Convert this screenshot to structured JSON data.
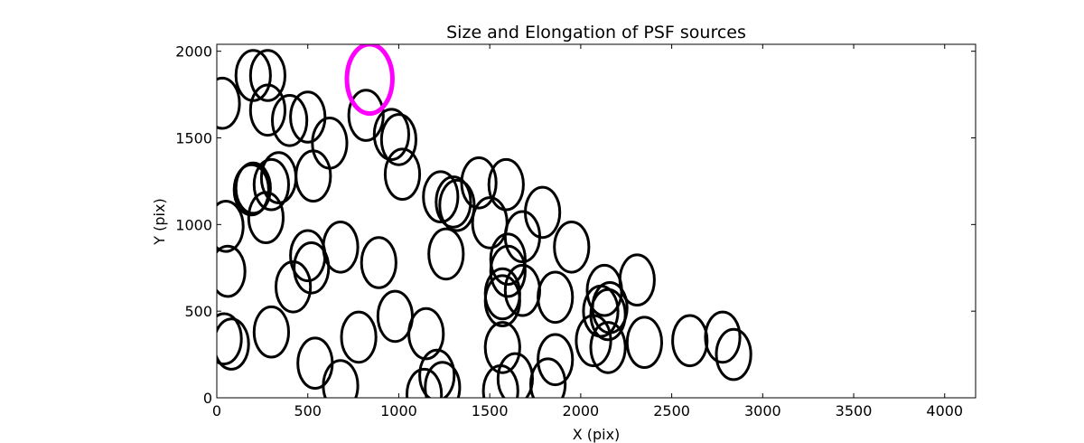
{
  "chart_data": {
    "type": "scatter",
    "title": "Size and Elongation of PSF sources",
    "xlabel": "X (pix)",
    "ylabel": "Y (pix)",
    "xlim": [
      0,
      4170
    ],
    "ylim": [
      0,
      2040
    ],
    "x_ticks": [
      0,
      500,
      1000,
      1500,
      2000,
      2500,
      3000,
      3500,
      4000
    ],
    "y_ticks": [
      0,
      500,
      1000,
      1500,
      2000
    ],
    "x_tick_labels": [
      "0",
      "500",
      "1000",
      "1500",
      "2000",
      "2500",
      "3000",
      "3500",
      "4000"
    ],
    "y_tick_labels": [
      "0",
      "500",
      "1000",
      "1500",
      "2000"
    ],
    "grid": false,
    "marker": "open ellipse",
    "colors": {
      "sources": "#000000",
      "reference": "#ff00ff"
    },
    "series": [
      {
        "points": [
          [
            30,
            1700
          ],
          [
            200,
            1860
          ],
          [
            280,
            1860
          ],
          [
            280,
            1660
          ],
          [
            400,
            1600
          ],
          [
            500,
            1620
          ],
          [
            620,
            1470
          ],
          [
            820,
            1630
          ],
          [
            960,
            1520
          ],
          [
            1000,
            1490
          ],
          [
            1020,
            1290
          ],
          [
            200,
            1210
          ],
          [
            190,
            1200
          ],
          [
            340,
            1270
          ],
          [
            300,
            1230
          ],
          [
            530,
            1280
          ],
          [
            50,
            990
          ],
          [
            270,
            1040
          ],
          [
            1230,
            1160
          ],
          [
            1300,
            1130
          ],
          [
            1320,
            1110
          ],
          [
            1440,
            1240
          ],
          [
            1590,
            1230
          ],
          [
            1500,
            1010
          ],
          [
            1680,
            930
          ],
          [
            1790,
            1070
          ],
          [
            1950,
            870
          ],
          [
            60,
            730
          ],
          [
            500,
            820
          ],
          [
            520,
            750
          ],
          [
            680,
            870
          ],
          [
            890,
            780
          ],
          [
            420,
            640
          ],
          [
            1260,
            830
          ],
          [
            1600,
            800
          ],
          [
            1600,
            730
          ],
          [
            1570,
            600
          ],
          [
            1570,
            560
          ],
          [
            1680,
            620
          ],
          [
            1860,
            580
          ],
          [
            2130,
            620
          ],
          [
            2110,
            500
          ],
          [
            2150,
            480
          ],
          [
            2160,
            520
          ],
          [
            2310,
            680
          ],
          [
            40,
            340
          ],
          [
            80,
            310
          ],
          [
            300,
            380
          ],
          [
            780,
            350
          ],
          [
            980,
            470
          ],
          [
            1150,
            370
          ],
          [
            540,
            200
          ],
          [
            680,
            70
          ],
          [
            1210,
            130
          ],
          [
            1140,
            20
          ],
          [
            1240,
            60
          ],
          [
            1560,
            40
          ],
          [
            1570,
            290
          ],
          [
            1640,
            110
          ],
          [
            1820,
            80
          ],
          [
            1860,
            220
          ],
          [
            2070,
            330
          ],
          [
            2150,
            290
          ],
          [
            2350,
            320
          ],
          [
            2600,
            330
          ],
          [
            2780,
            350
          ],
          [
            2840,
            250
          ]
        ],
        "width_pix": 190,
        "height_pix": 290
      },
      {
        "points": [
          [
            840,
            1840
          ]
        ],
        "width_pix": 250,
        "height_pix": 400
      }
    ]
  }
}
